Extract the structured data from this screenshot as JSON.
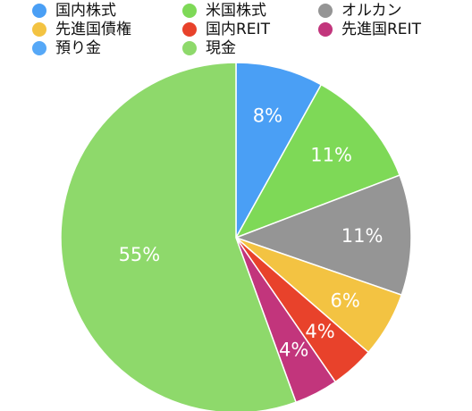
{
  "chart_data": {
    "type": "pie",
    "categories": [
      "国内株式",
      "米国株式",
      "オルカン",
      "先進国債権",
      "国内REIT",
      "先進国REIT",
      "預り金",
      "現金"
    ],
    "values": [
      8,
      11,
      11,
      6,
      4,
      4,
      0,
      55
    ],
    "data_labels": [
      "8%",
      "11%",
      "11%",
      "6%",
      "4%",
      "4%",
      "",
      "55%"
    ],
    "colors": [
      "#4a9ff5",
      "#7ed957",
      "#959595",
      "#f3c342",
      "#e8422b",
      "#c2357c",
      "#56a8f7",
      "#8ed96b"
    ],
    "legend_position": "top",
    "legend_columns": 3,
    "start_angle": "12 o'clock",
    "direction": "clockwise"
  }
}
